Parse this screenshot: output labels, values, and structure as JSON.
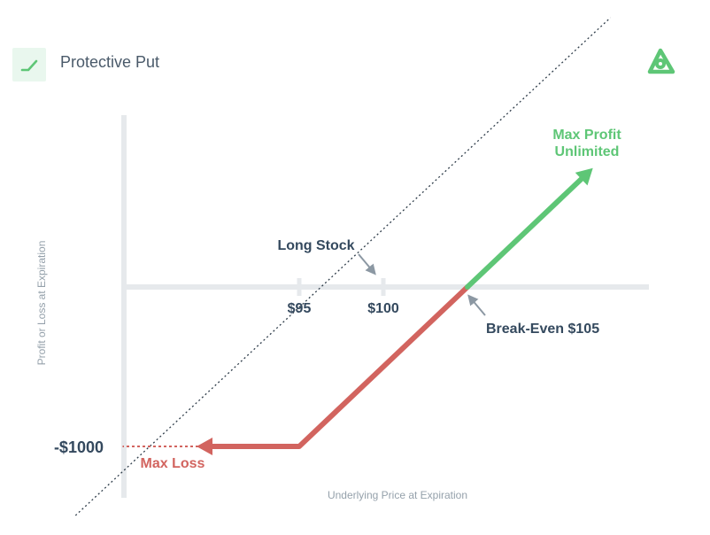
{
  "header": {
    "title": "Protective Put",
    "icon": "trend-up-icon",
    "logo": "brand-logo-icon"
  },
  "colors": {
    "profit": "#5ec676",
    "loss": "#d2645f",
    "axis": "#e6e9ec",
    "text": "#34495e",
    "muted": "#95a1ab",
    "icon_bg": "#e9f7ee"
  },
  "chart_data": {
    "type": "line",
    "title": "Protective Put",
    "xlabel": "Underlying Price at Expiration",
    "ylabel": "Profit or Loss at Expiration",
    "x_ticks": [
      {
        "value": 95,
        "label": "$95"
      },
      {
        "value": 100,
        "label": "$100"
      }
    ],
    "y_ticks": [
      {
        "value": -1000,
        "label": "-$1000"
      }
    ],
    "xlim": [
      76,
      118
    ],
    "ylim": [
      -1400,
      1200
    ],
    "series": [
      {
        "name": "Long Stock",
        "style": "dotted",
        "x": [
          81.7,
          113.5
        ],
        "y": [
          -1433,
          1689
        ]
      },
      {
        "name": "Protective Put (loss)",
        "style": "solid",
        "x": [
          95,
          105
        ],
        "y": [
          -1000,
          0
        ]
      },
      {
        "name": "Protective Put (profit)",
        "style": "solid",
        "x": [
          105,
          112
        ],
        "y": [
          0,
          700
        ]
      },
      {
        "name": "Max Loss",
        "style": "solid",
        "x": [
          95,
          89
        ],
        "y": [
          -1000,
          -1000
        ]
      },
      {
        "name": "Max Loss extension",
        "style": "dashed",
        "x": [
          89,
          84.5
        ],
        "y": [
          -1000,
          -1000
        ]
      }
    ],
    "annotations": {
      "long_stock": "Long Stock",
      "break_even": "Break-Even $105",
      "max_loss": "Max Loss",
      "max_profit_line1": "Max Profit",
      "max_profit_line2": "Unlimited"
    }
  }
}
